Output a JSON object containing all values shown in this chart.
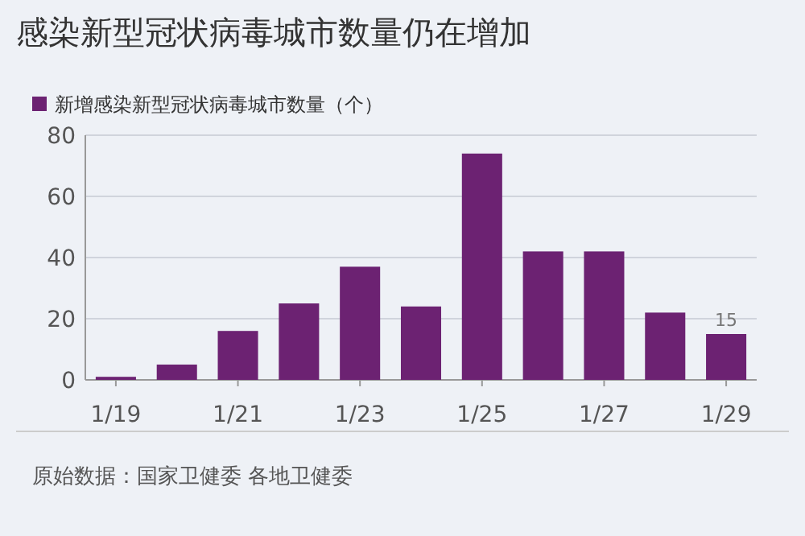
{
  "chart_data": {
    "type": "bar",
    "title": "感染新型冠状病毒城市数量仍在增加",
    "categories": [
      "1/19",
      null,
      "1/21",
      null,
      "1/23",
      null,
      "1/25",
      null,
      "1/27",
      null,
      "1/29"
    ],
    "series": [
      {
        "name": "新增感染新型冠状病毒城市数量（个）",
        "color": "#6c2272",
        "values": [
          1,
          5,
          16,
          25,
          37,
          24,
          74,
          42,
          42,
          22,
          15
        ],
        "value_labels": [
          null,
          null,
          null,
          null,
          null,
          null,
          null,
          null,
          null,
          null,
          "15"
        ]
      }
    ],
    "ylim": [
      0,
      80
    ],
    "yticks": [
      0,
      20,
      40,
      60,
      80
    ],
    "grid": "y",
    "legend": "top left",
    "annotations": [
      "原始数据：国家卫健委 各地卫健委"
    ]
  }
}
